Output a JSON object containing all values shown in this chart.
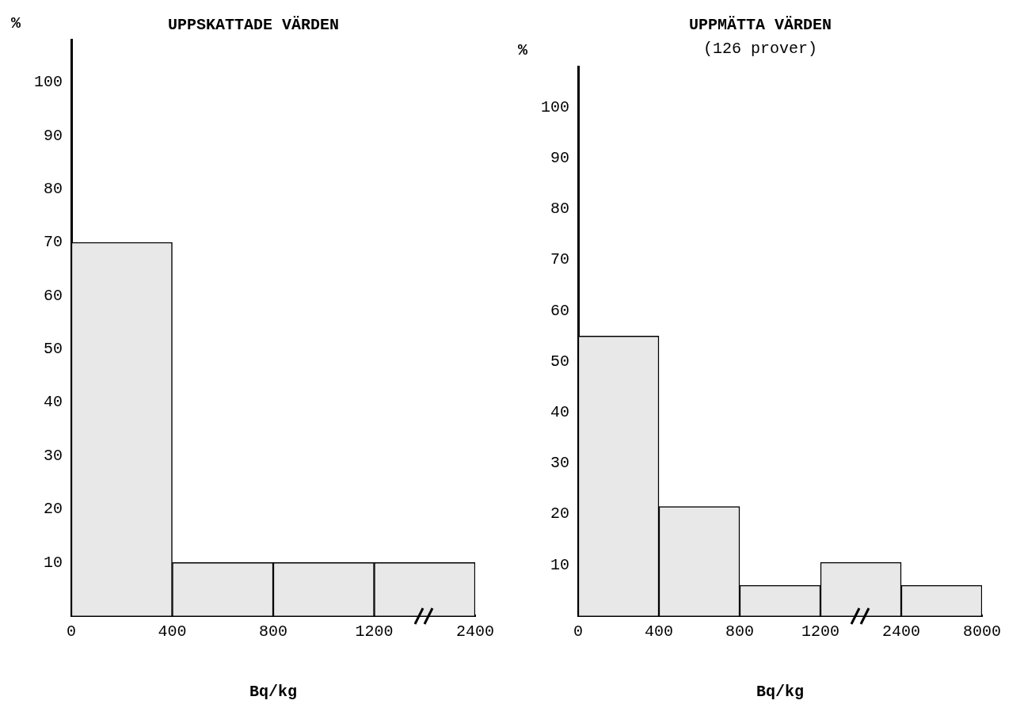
{
  "chart_data": [
    {
      "type": "bar",
      "title": "UPPSKATTADE VÄRDEN",
      "xlabel": "Bq/kg",
      "ylabel": "%",
      "categories": [
        null,
        null,
        null,
        null
      ],
      "annotations": [
        "0",
        "400",
        "800",
        "1200",
        "2400"
      ],
      "values": [
        70,
        10,
        10,
        10
      ],
      "color": "#e8e8e8",
      "ylim": [
        0,
        108
      ],
      "yticks": [
        10,
        20,
        30,
        40,
        50,
        60,
        70,
        80,
        90,
        100
      ]
    },
    {
      "type": "bar",
      "title": "UPPMÄTTA VÄRDEN",
      "subtitle": "(126 prover)",
      "xlabel": "Bq/kg",
      "ylabel": "%",
      "categories": [
        null,
        null,
        null,
        null,
        null
      ],
      "annotations": [
        "0",
        "400",
        "800",
        "1200",
        "2400",
        "8000"
      ],
      "values": [
        55,
        21.5,
        6,
        10.5,
        6
      ],
      "color": "#e8e8e8",
      "ylim": [
        0,
        108
      ],
      "yticks": [
        10,
        20,
        30,
        40,
        50,
        60,
        70,
        80,
        90,
        100
      ]
    }
  ]
}
